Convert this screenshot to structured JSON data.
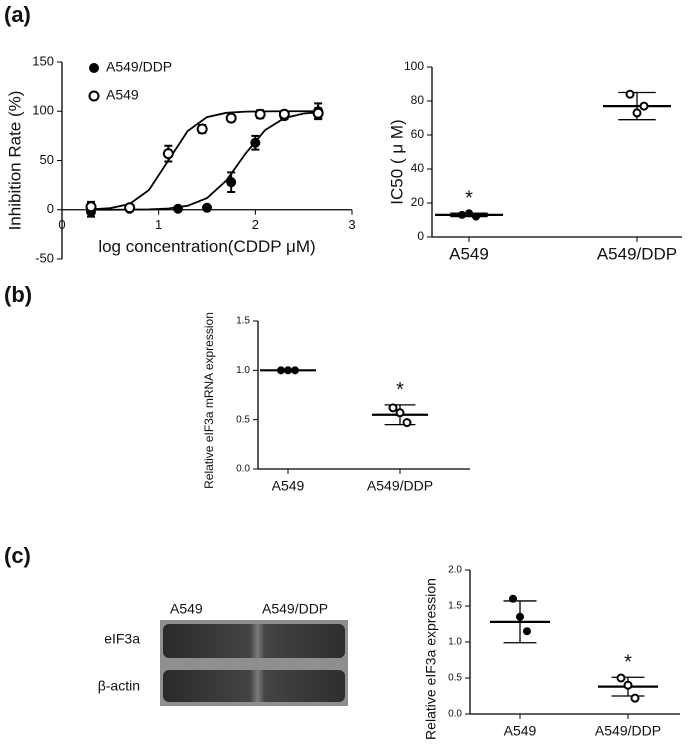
{
  "panels": [
    "(a)",
    "(b)",
    "(c)"
  ],
  "blot": {
    "lanes": [
      "A549",
      "A549/DDP"
    ],
    "rows": [
      "eIF3a",
      "β-actin"
    ]
  },
  "chart_data": [
    {
      "type": "scatter",
      "x_label": "log concentration(CDDP μM)",
      "y_label": "Inhibition Rate (%)",
      "xlim": [
        0,
        3
      ],
      "xticks": [
        0,
        1,
        2,
        3
      ],
      "ylim": [
        -50,
        150
      ],
      "yticks": [
        -50,
        0,
        50,
        100,
        150
      ],
      "legend": "top-left",
      "series": [
        {
          "name": "A549/DDP",
          "marker": "filled",
          "color": "#000000",
          "x": [
            0.3,
            0.7,
            1.2,
            1.5,
            1.75,
            2.0,
            2.3,
            2.65
          ],
          "values": [
            -2,
            1,
            1,
            2,
            28,
            68,
            95,
            100
          ],
          "errors": [
            5,
            2,
            1,
            2,
            10,
            7,
            3,
            8
          ],
          "fit_x": [
            0.3,
            0.5,
            0.7,
            0.9,
            1.1,
            1.3,
            1.5,
            1.7,
            1.9,
            2.1,
            2.3,
            2.5,
            2.7
          ],
          "fit_y": [
            0,
            0,
            0.1,
            0.4,
            1.3,
            4,
            11.8,
            29.7,
            57.2,
            80.8,
            93,
            97.7,
            99.3
          ]
        },
        {
          "name": "A549",
          "marker": "open",
          "color": "#000000",
          "x": [
            0.3,
            0.7,
            1.1,
            1.45,
            1.75,
            2.05,
            2.3,
            2.65
          ],
          "values": [
            3,
            2,
            57,
            82,
            93,
            97,
            97,
            98
          ],
          "errors": [
            5,
            2,
            8,
            4,
            3,
            4,
            3,
            5
          ],
          "fit_x": [
            0.3,
            0.5,
            0.7,
            0.9,
            1.1,
            1.3,
            1.5,
            1.7,
            1.9,
            2.1,
            2.3,
            2.5,
            2.7
          ],
          "fit_y": [
            0.4,
            1.6,
            5.9,
            20.1,
            50,
            79.9,
            94.1,
            98.4,
            99.6,
            99.9,
            100,
            100,
            100
          ]
        }
      ]
    },
    {
      "type": "dot",
      "y_label": "IC50 ( μ M)",
      "categories": [
        "A549",
        "A549/DDP"
      ],
      "ylim": [
        0,
        100
      ],
      "yticks": [
        0,
        20,
        40,
        60,
        80,
        100
      ],
      "values": [
        [
          13,
          14,
          12
        ],
        [
          84,
          73,
          77
        ]
      ],
      "means": [
        13,
        77
      ],
      "sds": [
        1,
        8
      ],
      "markers": [
        "filled",
        "open"
      ],
      "significance": [
        "*",
        null
      ]
    },
    {
      "type": "dot",
      "y_label": "Relative eIF3a mRNA expression",
      "categories": [
        "A549",
        "A549/DDP"
      ],
      "ylim": [
        0,
        1.5
      ],
      "yticks": [
        {
          "value": 0,
          "label": "0.0"
        },
        {
          "value": 0.5,
          "label": "0.5"
        },
        {
          "value": 1,
          "label": "1.0"
        },
        {
          "value": 1.5,
          "label": "1.5"
        }
      ],
      "values": [
        [
          1,
          1,
          1
        ],
        [
          0.62,
          0.57,
          0.47
        ]
      ],
      "means": [
        1,
        0.55
      ],
      "sds": [
        0,
        0.1
      ],
      "markers": [
        "filled",
        "open"
      ],
      "significance": [
        null,
        "*"
      ]
    },
    {
      "type": "dot",
      "y_label": "Relative eIF3a  expression",
      "categories": [
        "A549",
        "A549/DDP"
      ],
      "ylim": [
        0,
        2
      ],
      "yticks": [
        {
          "value": 0,
          "label": "0.0"
        },
        {
          "value": 0.5,
          "label": "0.5"
        },
        {
          "value": 1,
          "label": "1.0"
        },
        {
          "value": 1.5,
          "label": "1.5"
        },
        {
          "value": 2,
          "label": "2.0"
        }
      ],
      "values": [
        [
          1.6,
          1.35,
          1.15
        ],
        [
          0.5,
          0.4,
          0.22
        ]
      ],
      "means": [
        1.28,
        0.38
      ],
      "sds": [
        0.29,
        0.13
      ],
      "markers": [
        "filled",
        "open"
      ],
      "significance": [
        null,
        "*"
      ]
    }
  ]
}
